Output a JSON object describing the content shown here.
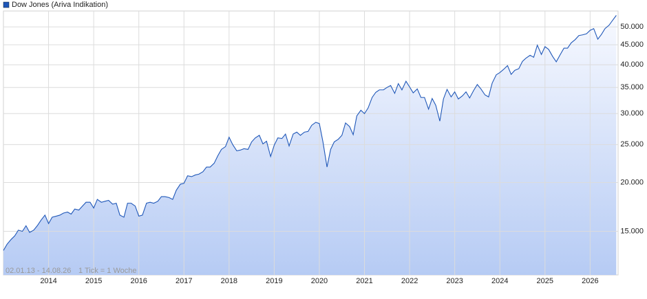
{
  "chart_data": {
    "type": "line",
    "log_scale": true,
    "grid": true,
    "date_range": "02.01.13 - 14.08.26",
    "tick_info": "1 Tick = 1 Woche",
    "xlim": [
      2013,
      2026.62
    ],
    "ylim": [
      11600,
      54900
    ],
    "xticks": [
      2014,
      2015,
      2016,
      2017,
      2018,
      2019,
      2020,
      2021,
      2022,
      2023,
      2024,
      2025,
      2026
    ],
    "yticks": [
      {
        "value": 15000,
        "label": "15.000"
      },
      {
        "value": 20000,
        "label": "20.000"
      },
      {
        "value": 25000,
        "label": "25.000"
      },
      {
        "value": 30000,
        "label": "30.000"
      },
      {
        "value": 35000,
        "label": "35.000"
      },
      {
        "value": 40000,
        "label": "40.000"
      },
      {
        "value": 45000,
        "label": "45.000"
      },
      {
        "value": 50000,
        "label": "50.000"
      }
    ],
    "x": [
      2013.0,
      2013.08,
      2013.17,
      2013.25,
      2013.33,
      2013.42,
      2013.5,
      2013.58,
      2013.67,
      2013.75,
      2013.83,
      2013.92,
      2014.0,
      2014.08,
      2014.17,
      2014.25,
      2014.33,
      2014.42,
      2014.5,
      2014.58,
      2014.67,
      2014.75,
      2014.83,
      2014.92,
      2015.0,
      2015.08,
      2015.17,
      2015.25,
      2015.33,
      2015.42,
      2015.5,
      2015.58,
      2015.67,
      2015.75,
      2015.83,
      2015.92,
      2016.0,
      2016.08,
      2016.17,
      2016.25,
      2016.33,
      2016.42,
      2016.5,
      2016.58,
      2016.67,
      2016.75,
      2016.83,
      2016.92,
      2017.0,
      2017.08,
      2017.17,
      2017.25,
      2017.33,
      2017.42,
      2017.5,
      2017.58,
      2017.67,
      2017.75,
      2017.83,
      2017.92,
      2018.0,
      2018.08,
      2018.17,
      2018.25,
      2018.33,
      2018.42,
      2018.5,
      2018.58,
      2018.67,
      2018.75,
      2018.83,
      2018.92,
      2019.0,
      2019.08,
      2019.17,
      2019.25,
      2019.33,
      2019.42,
      2019.5,
      2019.58,
      2019.67,
      2019.75,
      2019.83,
      2019.92,
      2020.0,
      2020.08,
      2020.17,
      2020.25,
      2020.33,
      2020.42,
      2020.5,
      2020.58,
      2020.67,
      2020.75,
      2020.83,
      2020.92,
      2021.0,
      2021.08,
      2021.17,
      2021.25,
      2021.33,
      2021.42,
      2021.5,
      2021.58,
      2021.67,
      2021.75,
      2021.83,
      2021.92,
      2022.0,
      2022.08,
      2022.17,
      2022.25,
      2022.33,
      2022.42,
      2022.5,
      2022.58,
      2022.67,
      2022.75,
      2022.83,
      2022.92,
      2023.0,
      2023.08,
      2023.17,
      2023.25,
      2023.33,
      2023.42,
      2023.5,
      2023.58,
      2023.67,
      2023.75,
      2023.83,
      2023.92,
      2024.0,
      2024.08,
      2024.17,
      2024.25,
      2024.33,
      2024.42,
      2024.5,
      2024.58,
      2024.67,
      2024.75,
      2024.83,
      2024.92,
      2025.0,
      2025.08,
      2025.17,
      2025.25,
      2025.33,
      2025.42,
      2025.5,
      2025.58,
      2025.67,
      2025.75,
      2025.83,
      2025.92,
      2026.0,
      2026.08,
      2026.17,
      2026.25,
      2026.33,
      2026.42,
      2026.5,
      2026.58
    ],
    "series": [
      {
        "name": "Dow Jones (Ariva Indikation)",
        "color": "#1f57b8",
        "values": [
          13400,
          13900,
          14300,
          14600,
          15100,
          15000,
          15500,
          14900,
          15100,
          15500,
          16000,
          16500,
          15700,
          16300,
          16400,
          16500,
          16700,
          16800,
          16600,
          17100,
          17000,
          17400,
          17800,
          17800,
          17200,
          18100,
          17800,
          17900,
          18000,
          17600,
          17700,
          16500,
          16300,
          17700,
          17700,
          17400,
          16400,
          16500,
          17700,
          17800,
          17700,
          17900,
          18400,
          18400,
          18300,
          18100,
          19100,
          19800,
          19900,
          20800,
          20700,
          20900,
          21000,
          21300,
          21900,
          21900,
          22400,
          23400,
          24300,
          24700,
          26100,
          25000,
          24100,
          24200,
          24400,
          24300,
          25400,
          26000,
          26400,
          25100,
          25500,
          23300,
          24900,
          26000,
          25900,
          26600,
          24800,
          26600,
          26900,
          26400,
          26900,
          27000,
          28000,
          28500,
          28300,
          25400,
          21900,
          24300,
          25400,
          25800,
          26400,
          28400,
          27800,
          26500,
          29600,
          30600,
          30000,
          31000,
          33000,
          34000,
          34500,
          34500,
          35000,
          35400,
          33800,
          35800,
          34500,
          36300,
          35100,
          33900,
          34700,
          33000,
          33000,
          30800,
          32800,
          31500,
          28700,
          32700,
          34600,
          33100,
          34100,
          32700,
          33300,
          34100,
          32900,
          34400,
          35600,
          34700,
          33500,
          33100,
          35900,
          37700,
          38200,
          38900,
          39800,
          37800,
          38700,
          39100,
          40800,
          41600,
          42300,
          41800,
          44900,
          42500,
          44500,
          43800,
          42000,
          40700,
          42300,
          44100,
          44100,
          45500,
          46400,
          47500,
          47700,
          48000,
          49000,
          49500,
          46500,
          47800,
          49500,
          50500,
          52000,
          53500
        ]
      }
    ]
  }
}
